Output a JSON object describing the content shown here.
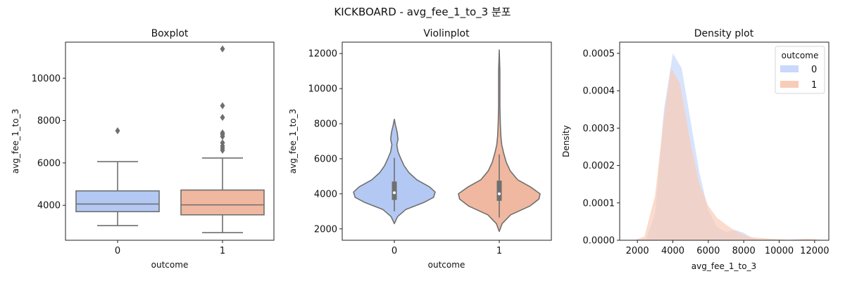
{
  "suptitle": "KICKBOARD - avg_fee_1_to_3 분포",
  "colors": {
    "class0": "#b3c9f3",
    "class1": "#f0b8a0",
    "edge": "#6f6f6f",
    "kde0": "#c9d8fb",
    "kde1": "#f8cdb8"
  },
  "chart_data": [
    {
      "type": "box",
      "title": "Boxplot",
      "xlabel": "outcome",
      "ylabel": "avg_fee_1_to_3",
      "categories": [
        "0",
        "1"
      ],
      "ylim": [
        2350,
        11700
      ],
      "yticks": [
        "4000",
        "6000",
        "8000",
        "10000"
      ],
      "boxes": [
        {
          "name": "0",
          "q1": 3700,
          "median": 4060,
          "q3": 4680,
          "whisker_low": 3040,
          "whisker_high": 6060,
          "outliers": [
            7520
          ]
        },
        {
          "name": "1",
          "q1": 3550,
          "median": 4020,
          "q3": 4720,
          "whisker_low": 2710,
          "whisker_high": 6230,
          "outliers": [
            6600,
            6700,
            6800,
            6950,
            7250,
            7350,
            7420,
            8150,
            8700,
            11380
          ]
        }
      ]
    },
    {
      "type": "violin",
      "title": "Violinplot",
      "xlabel": "outcome",
      "ylabel": "avg_fee_1_to_3",
      "categories": [
        "0",
        "1"
      ],
      "ylim": [
        1350,
        12650
      ],
      "yticks": [
        "2000",
        "4000",
        "6000",
        "8000",
        "10000",
        "12000"
      ],
      "violins": [
        {
          "name": "0",
          "q1": 3650,
          "median": 4060,
          "q3": 4700,
          "whisker_low": 3000,
          "whisker_high": 6050,
          "profile_y": [
            2300,
            2700,
            3100,
            3500,
            3800,
            4100,
            4400,
            4800,
            5200,
            5600,
            6000,
            6400,
            6800,
            7100,
            7500,
            7900,
            8250
          ],
          "profile_w": [
            0,
            0.08,
            0.28,
            0.72,
            0.96,
            1.0,
            0.86,
            0.55,
            0.36,
            0.24,
            0.16,
            0.09,
            0.06,
            0.09,
            0.07,
            0.03,
            0
          ]
        },
        {
          "name": "1",
          "q1": 3600,
          "median": 4000,
          "q3": 4750,
          "whisker_low": 2650,
          "whisker_high": 6250,
          "profile_y": [
            1850,
            2300,
            2800,
            3300,
            3700,
            4000,
            4400,
            4800,
            5300,
            5800,
            6300,
            6800,
            7300,
            8000,
            9000,
            10000,
            11000,
            12200
          ],
          "profile_w": [
            0,
            0.07,
            0.28,
            0.75,
            0.97,
            1.0,
            0.76,
            0.45,
            0.27,
            0.17,
            0.11,
            0.06,
            0.04,
            0.025,
            0.015,
            0.015,
            0.015,
            0
          ]
        }
      ]
    },
    {
      "type": "area",
      "title": "Density plot",
      "xlabel": "avg_fee_1_to_3",
      "ylabel": "Density",
      "xlim": [
        1000,
        12800
      ],
      "ylim": [
        0,
        0.00053
      ],
      "xticks": [
        "2000",
        "4000",
        "6000",
        "8000",
        "10000",
        "12000"
      ],
      "yticks": [
        "0.0000",
        "0.0001",
        "0.0002",
        "0.0003",
        "0.0004",
        "0.0005"
      ],
      "legend": {
        "title": "outcome",
        "position": "top-right",
        "labels": [
          "0",
          "1"
        ]
      },
      "series": [
        {
          "name": "0",
          "x": [
            2000,
            2500,
            3000,
            3500,
            4000,
            4500,
            5000,
            5500,
            6000,
            6500,
            7000,
            7500,
            8000,
            8500,
            9000
          ],
          "y": [
            0,
            4e-06,
            7e-05,
            0.00035,
            0.0005,
            0.00046,
            0.00032,
            0.00018,
            8e-05,
            3.5e-05,
            2.2e-05,
            2.8e-05,
            2e-05,
            5e-06,
            0
          ]
        },
        {
          "name": "1",
          "x": [
            1800,
            2400,
            3000,
            3500,
            3900,
            4400,
            5000,
            5500,
            6000,
            6500,
            7000,
            7500,
            8000,
            8500,
            9500,
            10500,
            11500,
            12000,
            12600
          ],
          "y": [
            0,
            1e-05,
            0.00012,
            0.00033,
            0.00046,
            0.00042,
            0.00026,
            0.00015,
            9.2e-05,
            6e-05,
            4.2e-05,
            2.6e-05,
            1.4e-05,
            8e-06,
            4e-06,
            1e-06,
            4e-06,
            3e-06,
            0
          ]
        }
      ]
    }
  ]
}
